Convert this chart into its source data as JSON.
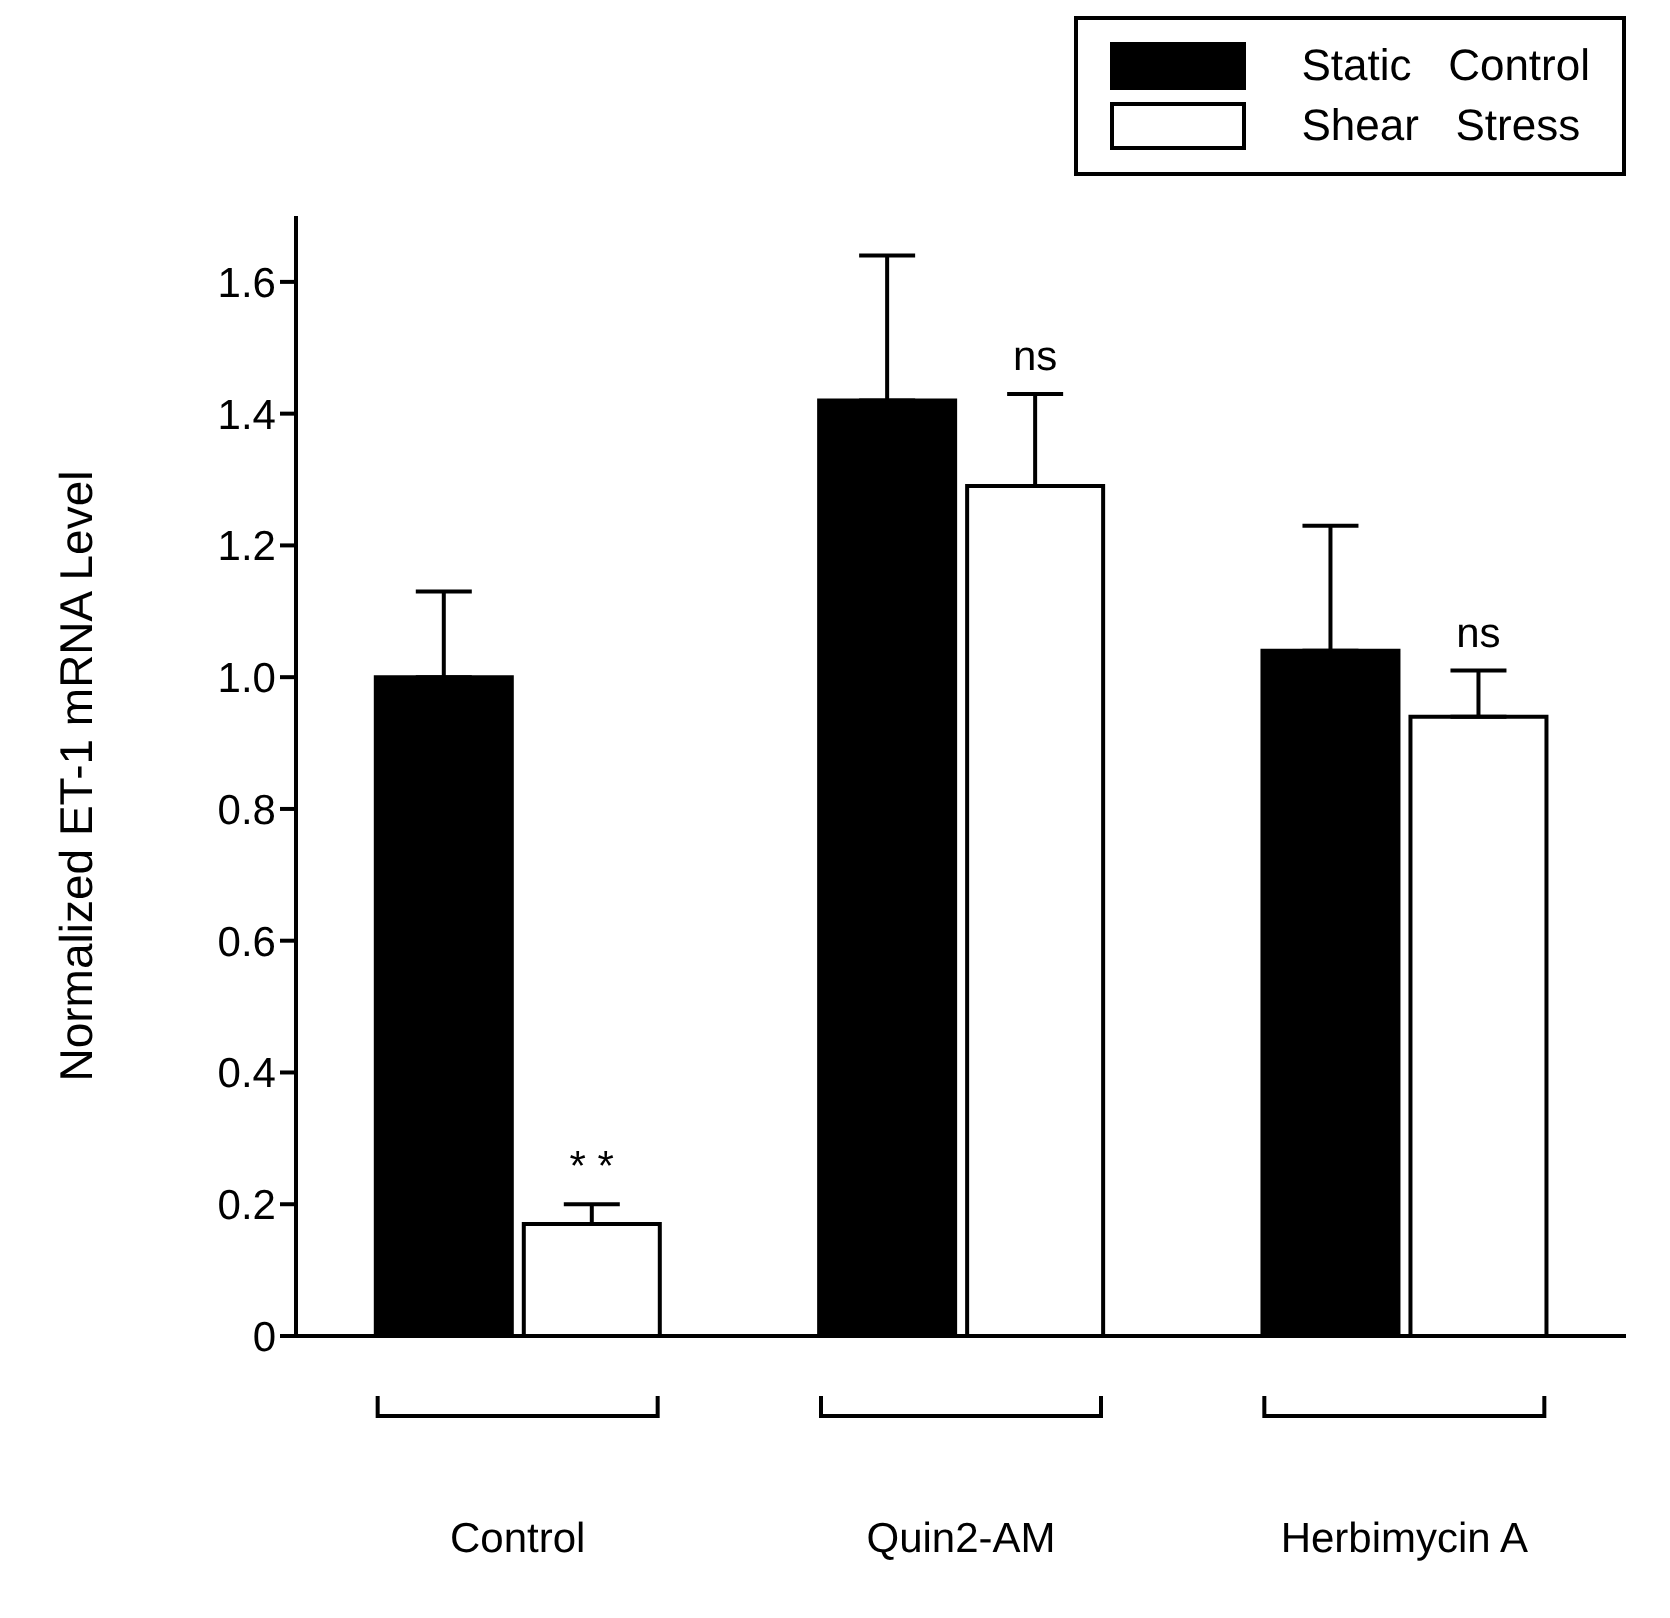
{
  "chart_data": {
    "type": "bar",
    "ylabel": "Normalized ET-1 mRNA Level",
    "categories": [
      "Control",
      "Quin2-AM",
      "Herbimycin A"
    ],
    "ylim": [
      0,
      1.7
    ],
    "yticks": [
      {
        "value": 0,
        "label": "0"
      },
      {
        "value": 0.2,
        "label": "0.2"
      },
      {
        "value": 0.4,
        "label": "0.4"
      },
      {
        "value": 0.6,
        "label": "0.6"
      },
      {
        "value": 0.8,
        "label": "0.8"
      },
      {
        "value": 1,
        "label": "1.0"
      },
      {
        "value": 1.2,
        "label": "1.2"
      },
      {
        "value": 1.4,
        "label": "1.4"
      },
      {
        "value": 1.6,
        "label": "1.6"
      }
    ],
    "series": [
      {
        "name": "Static   Control",
        "color": "#000000",
        "values": [
          1.0,
          1.42,
          1.04
        ],
        "errors": [
          [
            1.0,
            1.13
          ],
          [
            1.42,
            1.64
          ],
          [
            1.04,
            1.23
          ]
        ]
      },
      {
        "name": "Shear   Stress",
        "color": "#ffffff",
        "values": [
          0.17,
          1.29,
          0.94
        ],
        "errors": [
          [
            0.17,
            0.2
          ],
          [
            1.29,
            1.43
          ],
          [
            0.94,
            1.01
          ]
        ]
      }
    ],
    "annotations": [
      {
        "text": "* *",
        "x": "Control",
        "y": 0.2
      },
      {
        "text": "ns",
        "x": "Quin2-AM",
        "y": 1.43
      },
      {
        "text": "ns",
        "x": "Herbimycin A",
        "y": 1.01
      }
    ],
    "legend": "top right",
    "grid": false
  }
}
